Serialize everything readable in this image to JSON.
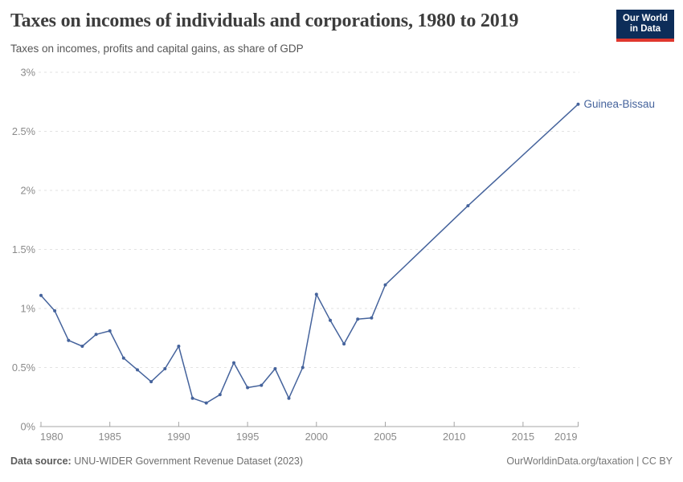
{
  "header": {
    "title": "Taxes on incomes of individuals and corporations, 1980 to 2019",
    "subtitle": "Taxes on incomes, profits and capital gains, as share of GDP",
    "logo": {
      "line1": "Our World",
      "line2": "in Data",
      "bg_color": "#0d2d59",
      "accent_color": "#e0372e"
    }
  },
  "chart_data": {
    "type": "line",
    "title": "Taxes on incomes of individuals and corporations, 1980 to 2019",
    "subtitle": "Taxes on incomes, profits and capital gains, as share of GDP",
    "unit": "% of GDP",
    "xlim": [
      1980,
      2019
    ],
    "ylim": [
      0,
      3
    ],
    "x_ticks": [
      1980,
      1985,
      1990,
      1995,
      2000,
      2005,
      2010,
      2015,
      2019
    ],
    "y_ticks": [
      0,
      0.5,
      1,
      1.5,
      2,
      2.5,
      3
    ],
    "y_tick_labels": [
      "0%",
      "0.5%",
      "1%",
      "1.5%",
      "2%",
      "2.5%",
      "3%"
    ],
    "grid": "horizontal-dashed",
    "legend_position": "end-of-line-label",
    "series": [
      {
        "name": "Guinea-Bissau",
        "color": "#45639c",
        "marker": "circle",
        "points": [
          [
            1980,
            1.11
          ],
          [
            1981,
            0.98
          ],
          [
            1982,
            0.73
          ],
          [
            1983,
            0.68
          ],
          [
            1984,
            0.78
          ],
          [
            1985,
            0.81
          ],
          [
            1986,
            0.58
          ],
          [
            1987,
            0.48
          ],
          [
            1988,
            0.38
          ],
          [
            1989,
            0.49
          ],
          [
            1990,
            0.68
          ],
          [
            1991,
            0.24
          ],
          [
            1992,
            0.2
          ],
          [
            1993,
            0.27
          ],
          [
            1994,
            0.54
          ],
          [
            1995,
            0.33
          ],
          [
            1996,
            0.35
          ],
          [
            1997,
            0.49
          ],
          [
            1998,
            0.24
          ],
          [
            1999,
            0.5
          ],
          [
            2000,
            1.12
          ],
          [
            2001,
            0.9
          ],
          [
            2002,
            0.7
          ],
          [
            2003,
            0.91
          ],
          [
            2004,
            0.92
          ],
          [
            2005,
            1.2
          ],
          [
            2011,
            1.87
          ],
          [
            2019,
            2.73
          ]
        ]
      }
    ]
  },
  "footer": {
    "source_label": "Data source:",
    "source_text": " UNU-WIDER Government Revenue Dataset (2023)",
    "right_text": "OurWorldinData.org/taxation | CC BY"
  }
}
